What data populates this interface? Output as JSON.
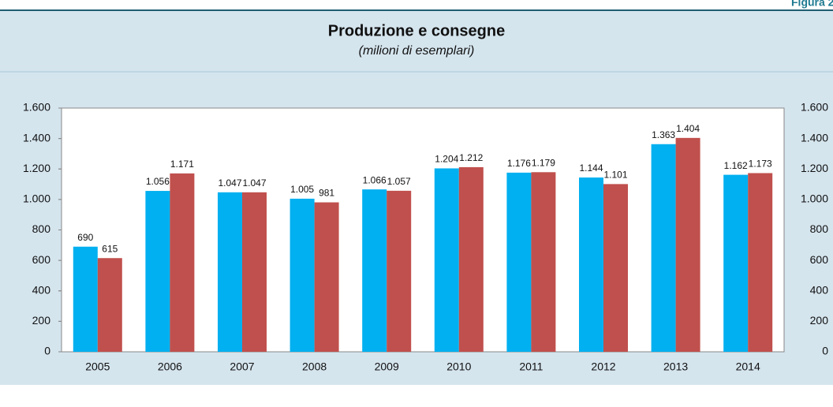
{
  "chart_data": {
    "type": "bar",
    "figure_label": "Figura 2.",
    "title": "Produzione e consegne",
    "subtitle": "(milioni di esemplari)",
    "categories": [
      "2005",
      "2006",
      "2007",
      "2008",
      "2009",
      "2010",
      "2011",
      "2012",
      "2013",
      "2014"
    ],
    "series": [
      {
        "color": "#00b0f0",
        "values": [
          690,
          1056,
          1047,
          1005,
          1066,
          1204,
          1176,
          1144,
          1363,
          1162
        ],
        "value_labels": [
          "690",
          "1.056",
          "1.047",
          "1.005",
          "1.066",
          "1.204",
          "1.176",
          "1.144",
          "1.363",
          "1.162"
        ]
      },
      {
        "color": "#c0504d",
        "values": [
          615,
          1171,
          1047,
          981,
          1057,
          1212,
          1179,
          1101,
          1404,
          1173
        ],
        "value_labels": [
          "615",
          "1.171",
          "1.047",
          "981",
          "1.057",
          "1.212",
          "1.179",
          "1.101",
          "1.404",
          "1.173"
        ]
      }
    ],
    "ylim": [
      0,
      1600
    ],
    "yticks": [
      0,
      200,
      400,
      600,
      800,
      {
        "value": 1000,
        "label": "1.000"
      },
      {
        "value": 1200,
        "label": "1.200"
      },
      {
        "value": 1400,
        "label": "1.400"
      },
      {
        "value": 1600,
        "label": "1.600"
      }
    ],
    "y2lim": [
      0,
      1600
    ],
    "y2ticks": [
      0,
      200,
      400,
      600,
      800,
      {
        "value": 1000,
        "label": "1.000"
      },
      {
        "value": 1200,
        "label": "1.200"
      },
      {
        "value": 1400,
        "label": "1.400"
      },
      {
        "value": 1600,
        "label": "1.600"
      }
    ]
  }
}
